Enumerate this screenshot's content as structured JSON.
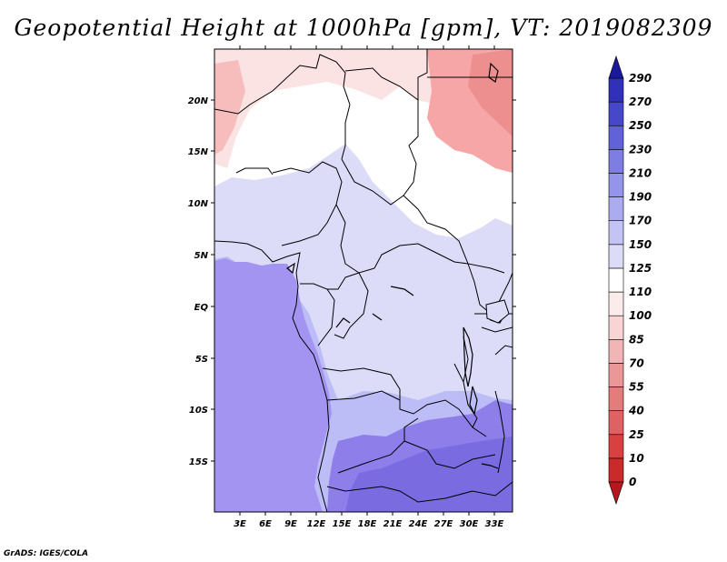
{
  "title": "Geopotential Height at 1000hPa [gpm], VT: 2019082309",
  "credit": "GrADS: IGES/COLA",
  "map": {
    "lat_labels": [
      "20N",
      "15N",
      "10N",
      "5N",
      "EQ",
      "5S",
      "10S",
      "15S"
    ],
    "lon_labels": [
      "3E",
      "6E",
      "9E",
      "12E",
      "15E",
      "18E",
      "21E",
      "24E",
      "27E",
      "30E",
      "33E"
    ]
  },
  "colorbar": {
    "levels": [
      "0",
      "10",
      "25",
      "40",
      "55",
      "70",
      "85",
      "100",
      "110",
      "125",
      "150",
      "170",
      "190",
      "210",
      "230",
      "250",
      "270",
      "290"
    ],
    "colors": [
      "#b4181e",
      "#c92a2a",
      "#d94141",
      "#e06161",
      "#e57c7c",
      "#eb9797",
      "#f2b5b5",
      "#f9d4d4",
      "#fcebeb",
      "#ffffff",
      "#dcdcf9",
      "#c4c4f4",
      "#ababef",
      "#9494ea",
      "#7d7de3",
      "#6161d9",
      "#4747cc",
      "#3030bb",
      "#191999"
    ]
  },
  "colors": {
    "ocean": "#a394f1",
    "land_light": "#dcdcf9",
    "land_medium": "#bcbcf6",
    "land_dark": "#8e7ee9",
    "north_pink": "#fbe3e3",
    "north_red": "#f6a6a6"
  }
}
